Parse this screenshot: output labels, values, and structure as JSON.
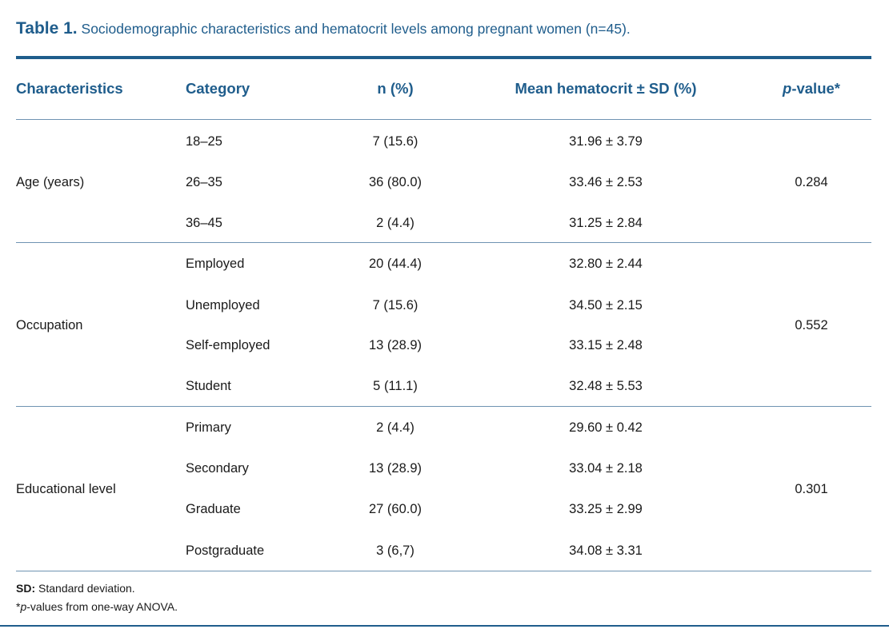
{
  "caption": {
    "label": "Table 1.",
    "text": "Sociodemographic characteristics and hematocrit levels among pregnant women (n=45)."
  },
  "headers": {
    "characteristics": "Characteristics",
    "category": "Category",
    "n_percent": "n (%)",
    "mean_hematocrit": "Mean hematocrit ± SD (%)",
    "p_value_italic": "p",
    "p_value_rest": "-value*"
  },
  "groups": [
    {
      "characteristic": "Age (years)",
      "p_value": "0.284",
      "rows": [
        {
          "category": "18–25",
          "n": "7 (15.6)",
          "mean": "31.96 ± 3.79"
        },
        {
          "category": "26–35",
          "n": "36 (80.0)",
          "mean": "33.46 ± 2.53"
        },
        {
          "category": "36–45",
          "n": "2 (4.4)",
          "mean": "31.25 ± 2.84"
        }
      ]
    },
    {
      "characteristic": "Occupation",
      "p_value": "0.552",
      "rows": [
        {
          "category": "Employed",
          "n": "20 (44.4)",
          "mean": "32.80 ± 2.44"
        },
        {
          "category": "Unemployed",
          "n": "7 (15.6)",
          "mean": "34.50 ± 2.15"
        },
        {
          "category": "Self-employed",
          "n": "13 (28.9)",
          "mean": "33.15 ± 2.48"
        },
        {
          "category": "Student",
          "n": "5 (11.1)",
          "mean": "32.48 ± 5.53"
        }
      ]
    },
    {
      "characteristic": "Educational level",
      "p_value": "0.301",
      "rows": [
        {
          "category": "Primary",
          "n": "2 (4.4)",
          "mean": "29.60 ± 0.42"
        },
        {
          "category": "Secondary",
          "n": "13 (28.9)",
          "mean": "33.04 ± 2.18"
        },
        {
          "category": "Graduate",
          "n": "27 (60.0)",
          "mean": "33.25 ± 2.99"
        },
        {
          "category": "Postgraduate",
          "n": "3 (6,7)",
          "mean": "34.08 ± 3.31"
        }
      ]
    }
  ],
  "footnotes": {
    "sd_label": "SD:",
    "sd_text": " Standard deviation.",
    "p_prefix": "*",
    "p_italic": "p",
    "p_text": "-values from one-way ANOVA."
  }
}
